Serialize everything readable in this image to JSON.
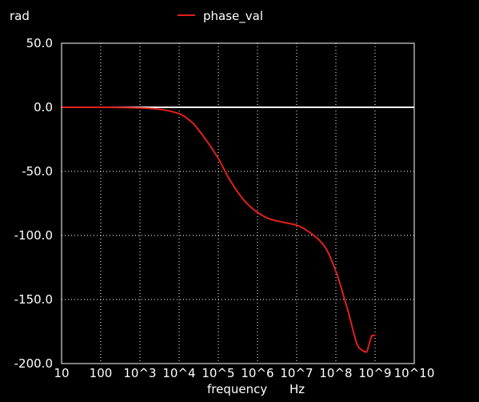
{
  "chart_data": {
    "type": "line",
    "y_unit_label": "rad",
    "xlabel": "frequency",
    "x_unit_label": "Hz",
    "x_scale": "log",
    "xlim": [
      10,
      10000000000
    ],
    "ylim": [
      -200,
      50
    ],
    "x_tick_labels": [
      "10",
      "100",
      "10^3",
      "10^4",
      "10^5",
      "10^6",
      "10^7",
      "10^8",
      "10^9",
      "10^10"
    ],
    "y_ticks": [
      50,
      0,
      -50,
      -100,
      -150,
      -200
    ],
    "y_tick_labels": [
      "50.0",
      "0.0",
      "-50.0",
      "-100.0",
      "-150.0",
      "-200.0"
    ],
    "grid": true,
    "legend_position": "top-center",
    "background_color": "#000000",
    "grid_color": "#ffffff",
    "reference_line": {
      "y": 0,
      "color": "#ffffff"
    },
    "series": [
      {
        "name": "phase_val",
        "color": "#e0201c",
        "x": [
          10,
          100,
          1000,
          3000,
          10000,
          20000,
          50000,
          100000,
          200000,
          500000,
          1000000,
          2000000,
          5000000,
          10000000,
          20000000,
          50000000,
          100000000,
          200000000,
          400000000,
          600000000,
          750000000,
          850000000,
          1000000000
        ],
        "y": [
          0,
          0,
          -0.5,
          -1.5,
          -5,
          -11,
          -26,
          -40,
          -57,
          -74,
          -82,
          -87,
          -90,
          -92,
          -97,
          -108,
          -128,
          -158,
          -188,
          -191,
          -182,
          -178,
          -178
        ]
      }
    ]
  }
}
